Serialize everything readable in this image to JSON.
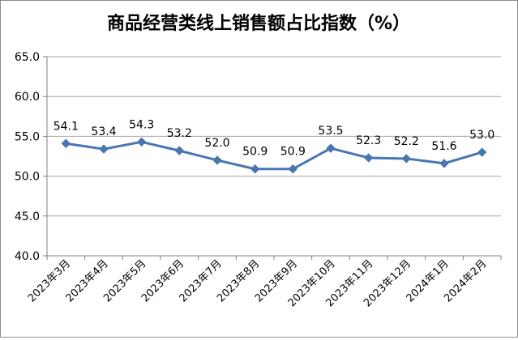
{
  "chart_data": {
    "type": "line",
    "title": "商品经营类线上销售额占比指数（%）",
    "xlabel": "",
    "ylabel": "",
    "categories": [
      "2023年3月",
      "2023年4月",
      "2023年5月",
      "2023年6月",
      "2023年7月",
      "2023年8月",
      "2023年9月",
      "2023年10月",
      "2023年11月",
      "2023年12月",
      "2024年1月",
      "2024年2月"
    ],
    "series": [
      {
        "values": [
          54.1,
          53.4,
          54.3,
          53.2,
          52.0,
          50.9,
          50.9,
          53.5,
          52.3,
          52.2,
          51.6,
          53.0
        ],
        "labels": [
          "54.1",
          "53.4",
          "54.3",
          "53.2",
          "52.0",
          "50.9",
          "50.9",
          "53.5",
          "52.3",
          "52.2",
          "51.6",
          "53.0"
        ],
        "color": "#4a76b0"
      }
    ],
    "ylim": [
      40.0,
      65.0
    ],
    "yticks": [
      "40.0",
      "45.0",
      "50.0",
      "55.0",
      "60.0",
      "65.0"
    ],
    "grid": true,
    "legend": "none",
    "colors": {
      "gridline": "#a6a6a6",
      "axis": "#808080"
    }
  }
}
